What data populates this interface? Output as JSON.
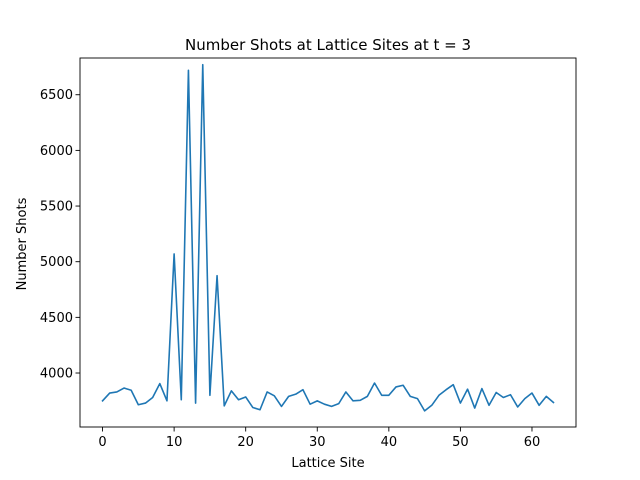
{
  "chart_data": {
    "type": "line",
    "title": "Number Shots at Lattice Sites at t = 3",
    "xlabel": "Lattice Site",
    "ylabel": "Number Shots",
    "xlim": [
      -3.15,
      66.15
    ],
    "ylim": [
      3515,
      6830
    ],
    "xticks": [
      0,
      10,
      20,
      30,
      40,
      50,
      60
    ],
    "yticks": [
      4000,
      4500,
      5000,
      5500,
      6000,
      6500
    ],
    "grid": false,
    "legend": "none",
    "series": [
      {
        "color": "#1f77b4",
        "x": [
          0,
          1,
          2,
          3,
          4,
          5,
          6,
          7,
          8,
          9,
          10,
          11,
          12,
          13,
          14,
          15,
          16,
          17,
          18,
          19,
          20,
          21,
          22,
          23,
          24,
          25,
          26,
          27,
          28,
          29,
          30,
          31,
          32,
          33,
          34,
          35,
          36,
          37,
          38,
          39,
          40,
          41,
          42,
          43,
          44,
          45,
          46,
          47,
          48,
          49,
          50,
          51,
          52,
          53,
          54,
          55,
          56,
          57,
          58,
          59,
          60,
          61,
          62,
          63
        ],
        "y": [
          3750,
          3820,
          3830,
          3865,
          3845,
          3715,
          3730,
          3780,
          3905,
          3750,
          5070,
          3760,
          6720,
          3730,
          6770,
          3800,
          4875,
          3705,
          3840,
          3760,
          3785,
          3690,
          3670,
          3830,
          3795,
          3700,
          3790,
          3810,
          3850,
          3720,
          3750,
          3720,
          3700,
          3725,
          3830,
          3750,
          3755,
          3790,
          3910,
          3800,
          3800,
          3875,
          3890,
          3790,
          3770,
          3660,
          3710,
          3800,
          3850,
          3895,
          3730,
          3855,
          3685,
          3860,
          3710,
          3825,
          3780,
          3805,
          3695,
          3770,
          3820,
          3710,
          3790,
          3735
        ]
      }
    ]
  }
}
